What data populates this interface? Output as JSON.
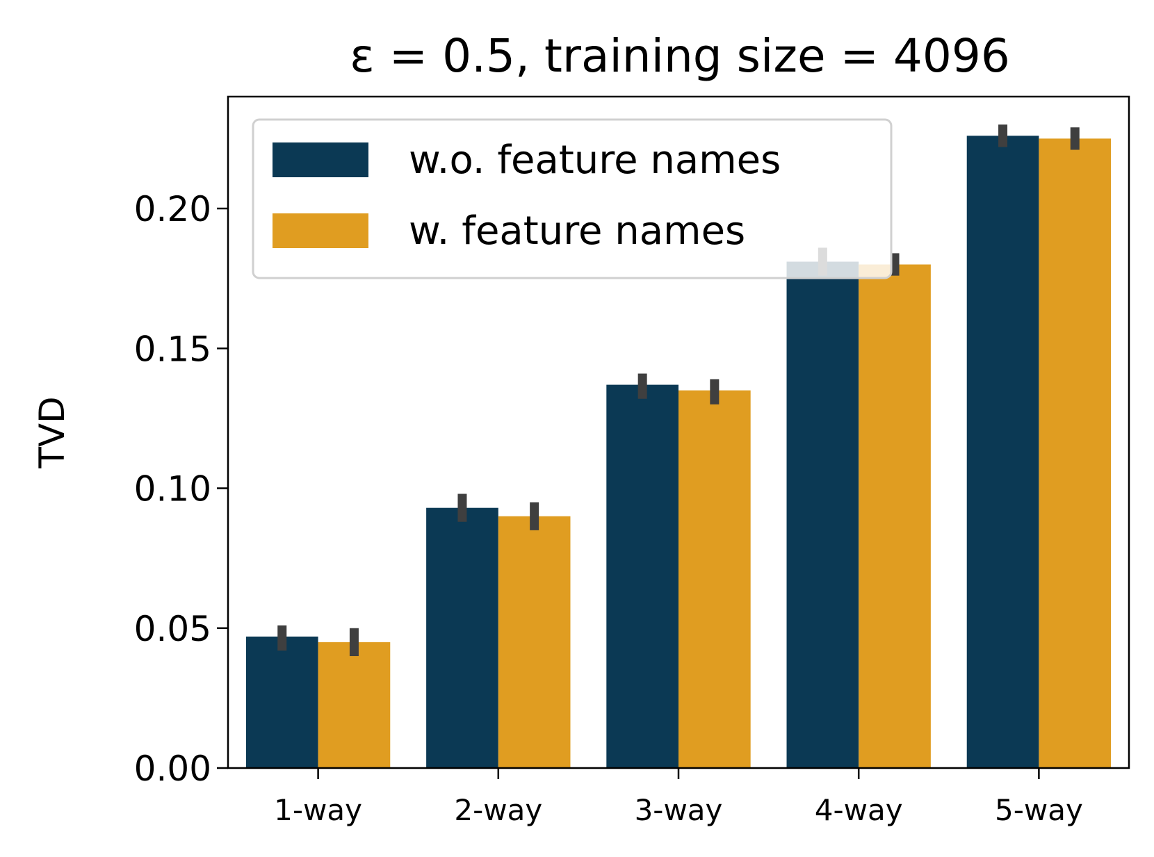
{
  "chart_data": {
    "type": "bar",
    "title": "ε = 0.5, training size = 4096",
    "xlabel": "",
    "ylabel": "TVD",
    "categories": [
      "1-way",
      "2-way",
      "3-way",
      "4-way",
      "5-way"
    ],
    "ylim": [
      0,
      0.24
    ],
    "yticks": [
      "0.00",
      "0.05",
      "0.10",
      "0.15",
      "0.20"
    ],
    "grid": false,
    "legend_position": "top-left",
    "series": [
      {
        "name": "w.o. feature names",
        "color": "#0b3954",
        "values": [
          0.047,
          0.093,
          0.137,
          0.181,
          0.226
        ],
        "error_low": [
          0.042,
          0.088,
          0.132,
          0.176,
          0.222
        ],
        "error_high": [
          0.051,
          0.098,
          0.141,
          0.186,
          0.23
        ]
      },
      {
        "name": "w. feature names",
        "color": "#e09d21",
        "values": [
          0.045,
          0.09,
          0.135,
          0.18,
          0.225
        ],
        "error_low": [
          0.04,
          0.085,
          0.13,
          0.176,
          0.221
        ],
        "error_high": [
          0.05,
          0.095,
          0.139,
          0.184,
          0.229
        ]
      }
    ],
    "error_bar_color": "#3f3f3f"
  }
}
